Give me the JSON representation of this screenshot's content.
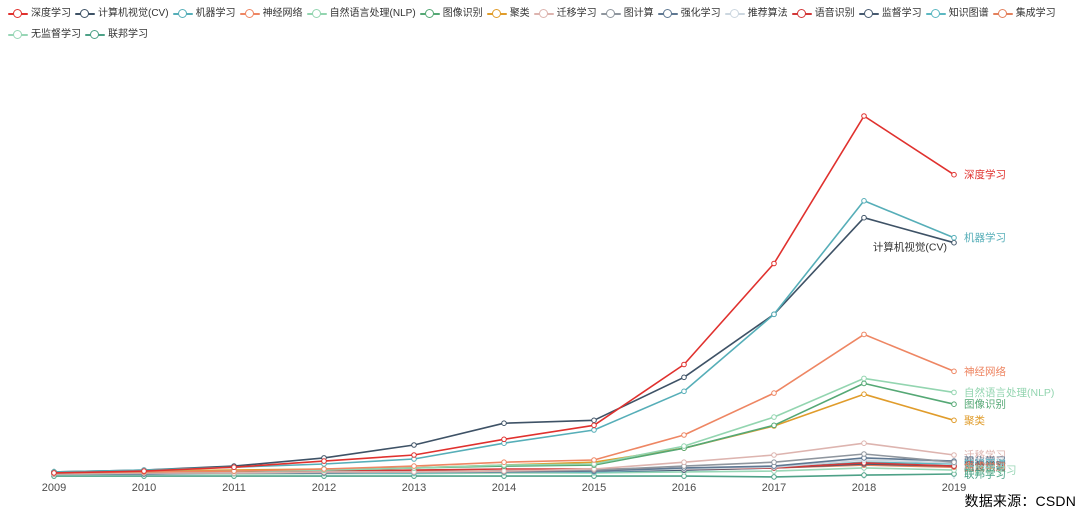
{
  "page": {
    "source_note": "数据来源：CSDN"
  },
  "legend": {
    "row1": [
      {
        "label": "深度学习",
        "color": "#e0312e"
      },
      {
        "label": "计算机视觉(CV)",
        "color": "#3e5266"
      },
      {
        "label": "机器学习",
        "color": "#56aeb8"
      },
      {
        "label": "神经网络",
        "color": "#ee8663"
      },
      {
        "label": "自然语言处理(NLP)",
        "color": "#93d5b0"
      },
      {
        "label": "图像识别",
        "color": "#55a875"
      },
      {
        "label": "聚类",
        "color": "#e09c2b"
      },
      {
        "label": "迁移学习",
        "color": "#ddb4af"
      },
      {
        "label": "图计算",
        "color": "#8f969e"
      },
      {
        "label": "强化学习",
        "color": "#5f7892"
      },
      {
        "label": "推荐算法",
        "color": "#ccd7e0"
      },
      {
        "label": "语音识别",
        "color": "#d23838"
      },
      {
        "label": "监督学习",
        "color": "#475a70"
      },
      {
        "label": "知识图谱",
        "color": "#5cb8c2"
      },
      {
        "label": "集成学习",
        "color": "#e3815d"
      }
    ],
    "row2": [
      {
        "label": "无监督学习",
        "color": "#98d6b6"
      },
      {
        "label": "联邦学习",
        "color": "#4da187"
      }
    ]
  },
  "chart_data": {
    "type": "line",
    "title": "",
    "xlabel": "",
    "ylabel": "",
    "unit": "relative search-interest index (深度学习 2018 = 100); no y-axis shown in original",
    "ylim": [
      0,
      100
    ],
    "grid": false,
    "legend_position": "top",
    "x": [
      2009,
      2010,
      2011,
      2012,
      2013,
      2014,
      2015,
      2016,
      2017,
      2018,
      2019
    ],
    "x_axis_labels": [
      "2009",
      "2010",
      "2011",
      "2012",
      "2013",
      "2014",
      "2015",
      "2016",
      "2017",
      "2018",
      "2019"
    ],
    "series": [
      {
        "name": "深度学习",
        "color": "#e0312e",
        "end_label": "深度学习",
        "label_side": "right",
        "values": [
          0.3,
          0.8,
          1.9,
          3.6,
          5.3,
          9.7,
          13.6,
          30.6,
          58.8,
          100,
          83.6
        ]
      },
      {
        "name": "机器学习",
        "color": "#56aeb8",
        "end_label": "机器学习",
        "label_side": "right",
        "values": [
          0.6,
          1.1,
          1.9,
          2.8,
          4.2,
          8.6,
          12.3,
          23.1,
          44.6,
          76.3,
          66.0
        ]
      },
      {
        "name": "计算机视觉(CV)",
        "color": "#3e5266",
        "end_label": "计算机视觉(CV)",
        "label_side": "left",
        "label_color": "#333333",
        "values": [
          0.6,
          1.1,
          2.2,
          4.5,
          8.1,
          14.2,
          15.0,
          27.0,
          44.6,
          71.6,
          64.6
        ]
      },
      {
        "name": "神经网络",
        "color": "#ee8663",
        "end_label": "神经网络",
        "label_side": "right",
        "values": [
          0.3,
          0.6,
          0.8,
          1.4,
          2.2,
          3.3,
          3.9,
          10.9,
          22.6,
          39.0,
          28.7
        ]
      },
      {
        "name": "自然语言处理(NLP)",
        "color": "#93d5b0",
        "end_label": "自然语言处理(NLP)",
        "label_side": "right",
        "values": [
          0.3,
          0.6,
          0.8,
          1.1,
          1.7,
          2.5,
          2.8,
          7.8,
          15.9,
          26.7,
          22.8
        ]
      },
      {
        "name": "图像识别",
        "color": "#55a875",
        "end_label": "图像识别",
        "label_side": "right",
        "values": [
          0.3,
          0.6,
          0.8,
          1.1,
          1.7,
          2.2,
          2.5,
          7.2,
          13.6,
          25.3,
          19.5
        ]
      },
      {
        "name": "聚类",
        "color": "#e09c2b",
        "end_label": "聚类",
        "label_side": "right",
        "values": [
          0.6,
          0.8,
          1.1,
          1.4,
          1.7,
          2.5,
          3.3,
          7.2,
          13.4,
          22.3,
          15.0
        ]
      },
      {
        "name": "迁移学习",
        "color": "#ddb4af",
        "end_label": "迁移学习",
        "label_side": "right",
        "values": [
          0.0,
          0.3,
          0.3,
          0.6,
          0.6,
          0.8,
          1.4,
          3.3,
          5.3,
          8.6,
          5.3
        ]
      },
      {
        "name": "图计算",
        "color": "#8f969e",
        "end_label": "图计算",
        "label_side": "right",
        "values": [
          0.0,
          0.3,
          0.3,
          0.6,
          0.6,
          0.8,
          1.1,
          2.2,
          3.3,
          5.6,
          3.3
        ]
      },
      {
        "name": "强化学习",
        "color": "#5f7892",
        "end_label": "强化学习",
        "label_side": "right",
        "values": [
          0.0,
          0.0,
          0.3,
          0.3,
          0.6,
          0.6,
          0.8,
          1.7,
          2.2,
          4.5,
          3.6
        ]
      },
      {
        "name": "推荐算法",
        "color": "#ccd7e0",
        "end_label": "推荐算法",
        "label_side": "right",
        "values": [
          0.0,
          0.0,
          0.3,
          0.3,
          0.6,
          0.6,
          0.8,
          1.4,
          1.9,
          3.9,
          3.1
        ]
      },
      {
        "name": "语音识别",
        "color": "#d23838",
        "end_label": "语音识别",
        "label_side": "right",
        "values": [
          0.3,
          0.6,
          0.8,
          0.8,
          1.1,
          1.4,
          1.4,
          1.4,
          1.7,
          3.1,
          2.2
        ]
      },
      {
        "name": "监督学习",
        "color": "#475a70",
        "end_label": "监督学习",
        "label_side": "right",
        "values": [
          0.0,
          0.3,
          0.3,
          0.6,
          0.6,
          0.8,
          0.8,
          1.1,
          1.7,
          2.8,
          2.2
        ]
      },
      {
        "name": "知识图谱",
        "color": "#5cb8c2",
        "end_label": "知识图谱",
        "label_side": "right",
        "values": [
          0.0,
          0.0,
          0.3,
          0.3,
          0.3,
          0.6,
          0.6,
          1.1,
          1.7,
          3.3,
          2.8
        ]
      },
      {
        "name": "集成学习",
        "color": "#e3815d",
        "end_label": "集成学习",
        "label_side": "right",
        "values": [
          0.3,
          0.3,
          0.6,
          0.6,
          0.8,
          0.8,
          1.1,
          1.4,
          1.7,
          2.5,
          1.9
        ]
      },
      {
        "name": "无监督学习",
        "color": "#98d6b6",
        "end_label": "无监督学习",
        "label_side": "right",
        "values": [
          0.0,
          0.0,
          0.0,
          0.1,
          0.1,
          0.3,
          0.3,
          0.6,
          0.8,
          1.7,
          1.1
        ]
      },
      {
        "name": "联邦学习",
        "color": "#4da187",
        "end_label": "联邦学习",
        "label_side": "right",
        "values": [
          -0.6,
          -0.6,
          -0.6,
          -0.6,
          -0.6,
          -0.6,
          -0.6,
          -0.6,
          -0.8,
          -0.3,
          0.0
        ]
      }
    ],
    "source": "数据来源：CSDN"
  }
}
